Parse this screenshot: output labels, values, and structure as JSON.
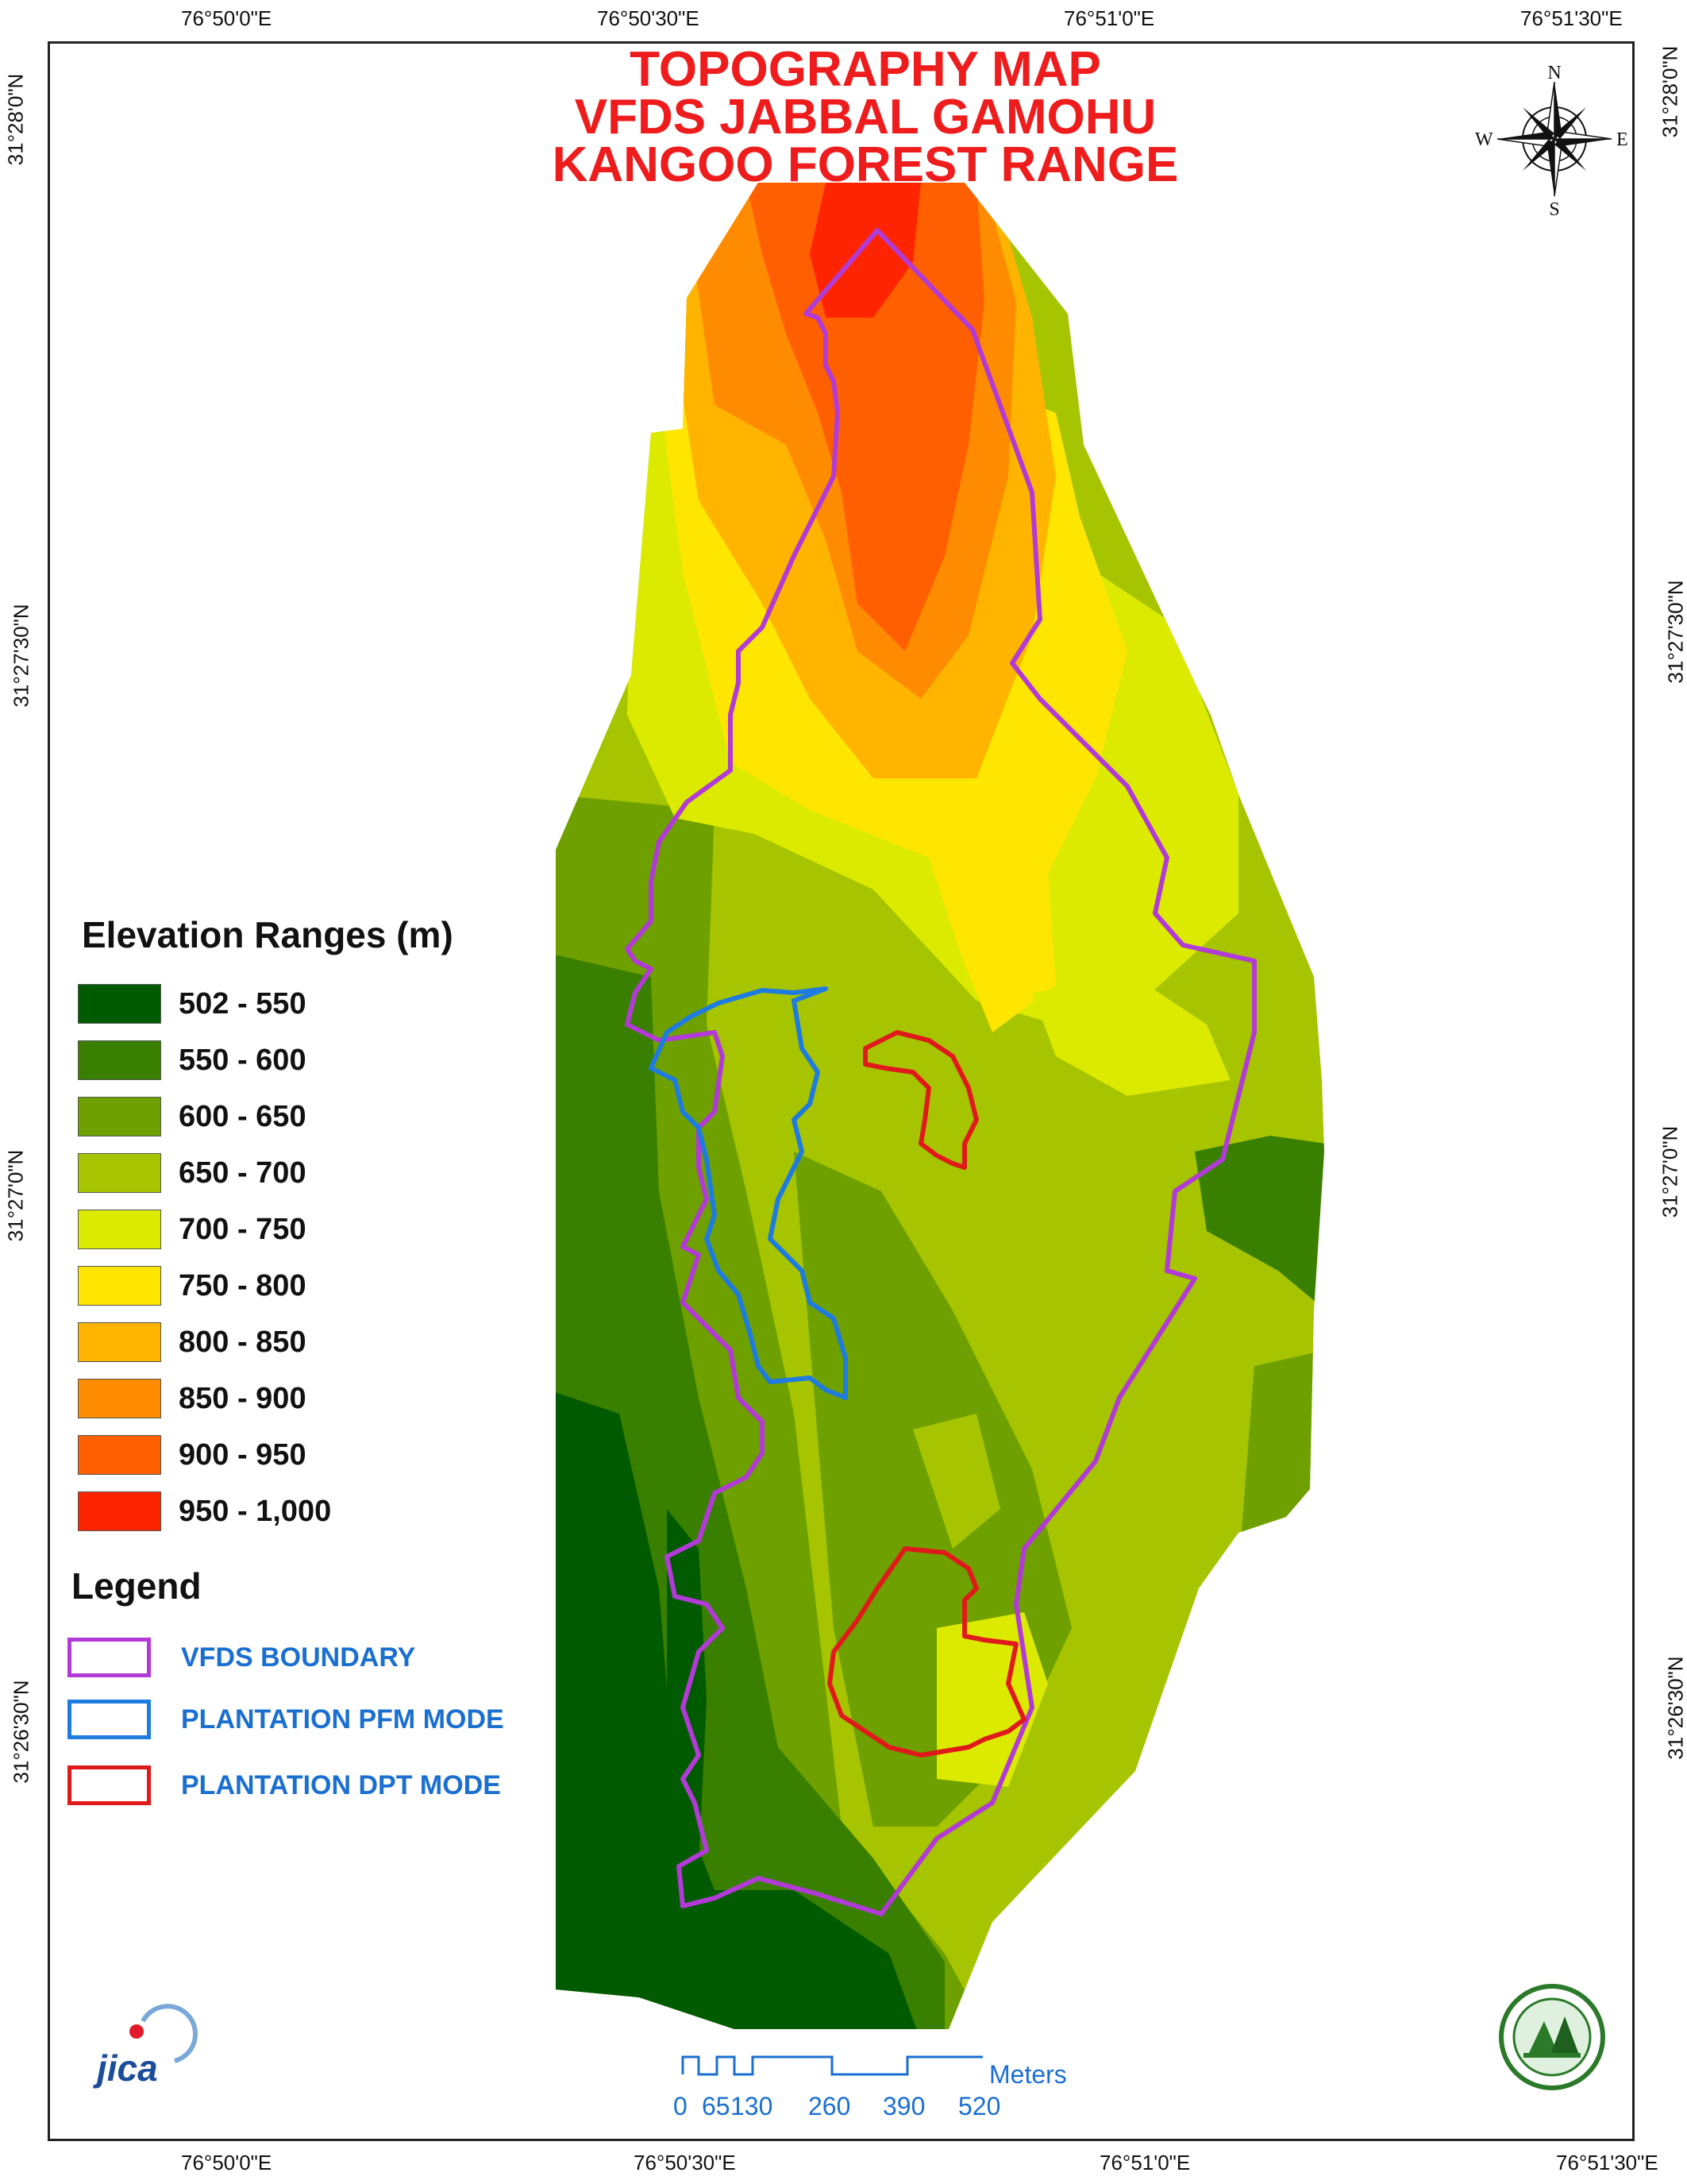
{
  "title": {
    "line1": "TOPOGRAPHY MAP",
    "line2": "VFDS JABBAL GAMOHU",
    "line3": "KANGOO FOREST RANGE"
  },
  "graticule": {
    "top": [
      "76°50'0\"E",
      "76°50'30\"E",
      "76°51'0\"E",
      "76°51'30\"E"
    ],
    "bottom": [
      "76°50'0\"E",
      "76°50'30\"E",
      "76°51'0\"E",
      "76°51'30\"E"
    ],
    "left": [
      "31°28'0\"N",
      "31°27'30\"N",
      "31°27'0\"N",
      "31°26'30\"N"
    ],
    "right": [
      "31°28'0\"N",
      "31°27'30\"N",
      "31°27'0\"N",
      "31°26'30\"N"
    ]
  },
  "compass": {
    "n": "N",
    "s": "S",
    "e": "E",
    "w": "W",
    "icon": "compass-rose-icon"
  },
  "elevation_legend": {
    "heading": "Elevation Ranges (m)",
    "classes": [
      {
        "label": "502 - 550",
        "color": "#005a00"
      },
      {
        "label": "550 - 600",
        "color": "#3a8000"
      },
      {
        "label": "600 - 650",
        "color": "#6ea000"
      },
      {
        "label": "650 - 700",
        "color": "#a6c400"
      },
      {
        "label": "700 - 750",
        "color": "#dcea00"
      },
      {
        "label": "750 - 800",
        "color": "#ffe600"
      },
      {
        "label": "800 - 850",
        "color": "#ffb400"
      },
      {
        "label": "850 - 900",
        "color": "#ff8c00"
      },
      {
        "label": "900 - 950",
        "color": "#ff5f00"
      },
      {
        "label": "950 - 1,000",
        "color": "#ff2400"
      }
    ]
  },
  "legend": {
    "heading": "Legend",
    "items": [
      {
        "label": "VFDS BOUNDARY",
        "color": "#b23ad6"
      },
      {
        "label": "PLANTATION PFM MODE",
        "color": "#1e7be0"
      },
      {
        "label": "PLANTATION DPT MODE",
        "color": "#e01a1a"
      }
    ]
  },
  "scale_bar": {
    "unit": "Meters",
    "ticks": [
      "0",
      "65",
      "130",
      "260",
      "390",
      "520"
    ]
  },
  "logos": {
    "jica": "JICA",
    "forest_dept": "forest-department-seal-icon"
  }
}
